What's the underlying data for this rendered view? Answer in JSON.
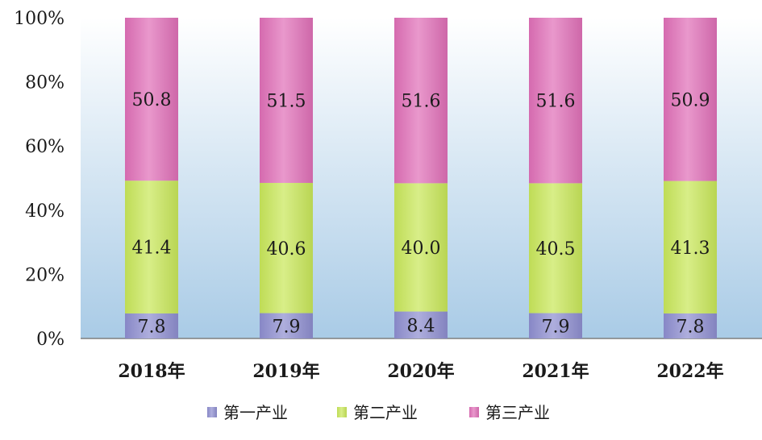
{
  "chart_data": {
    "type": "bar",
    "stacked": true,
    "percent": true,
    "categories": [
      "2018年",
      "2019年",
      "2020年",
      "2021年",
      "2022年"
    ],
    "series": [
      {
        "name": "第一产业",
        "values": [
          7.8,
          7.9,
          8.4,
          7.9,
          7.8
        ],
        "color": "#8e8ed0"
      },
      {
        "name": "第二产业",
        "values": [
          41.4,
          40.6,
          40.0,
          40.5,
          41.3
        ],
        "color": "#c9e85a"
      },
      {
        "name": "第三产业",
        "values": [
          50.8,
          51.5,
          51.6,
          51.6,
          50.9
        ],
        "color": "#e070b8"
      }
    ],
    "y_ticks": [
      "0%",
      "20%",
      "40%",
      "60%",
      "80%",
      "100%"
    ],
    "ylim": [
      0,
      100
    ],
    "grid": false,
    "legend_position": "bottom",
    "background_gradient": [
      "#ffffff",
      "#a9cbe6"
    ]
  }
}
